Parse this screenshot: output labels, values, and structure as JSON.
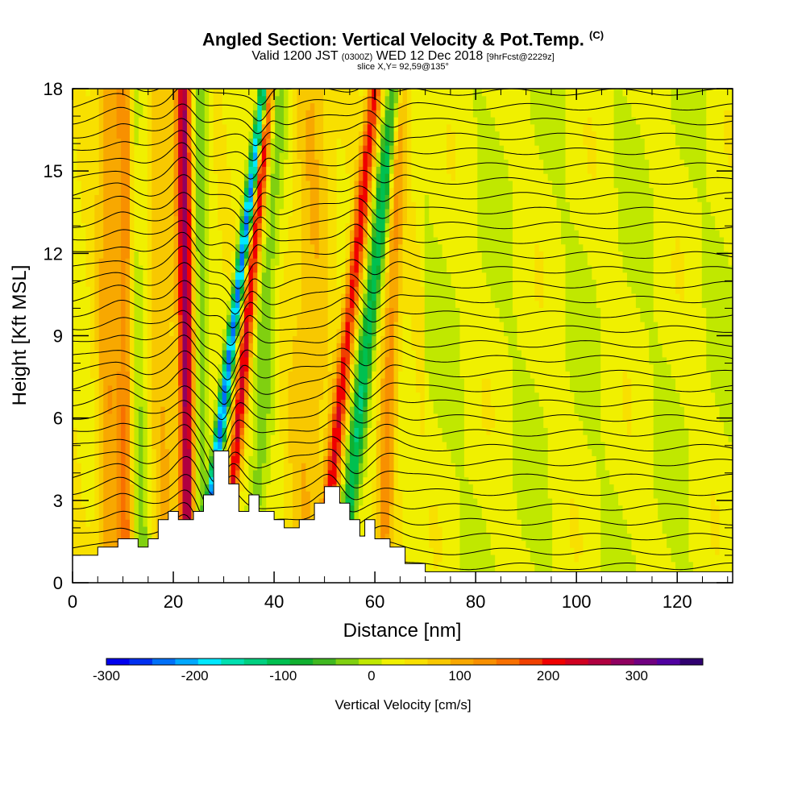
{
  "header": {
    "title": "Angled Section: Vertical Velocity & Pot.Temp.",
    "title_tag": "(C)",
    "valid_a": "Valid 1200 JST",
    "valid_small": "(0300Z)",
    "valid_b": "WED 12 Dec 2018",
    "fcst": "[9hrFcst@2229z]",
    "slice": "slice X,Y= 92,59@135°"
  },
  "chart_data": {
    "type": "heatmap",
    "xlabel": "Distance [nm]",
    "ylabel": "Height [Kft MSL]",
    "xlim": [
      0,
      131
    ],
    "ylim": [
      0,
      18
    ],
    "x_ticks": [
      0,
      20,
      40,
      60,
      80,
      100,
      120
    ],
    "y_ticks": [
      0,
      3,
      6,
      9,
      12,
      15,
      18
    ],
    "terrain_kft": [
      [
        0,
        1.0
      ],
      [
        5,
        1.0
      ],
      [
        5,
        1.3
      ],
      [
        9,
        1.3
      ],
      [
        9,
        1.6
      ],
      [
        13,
        1.6
      ],
      [
        13,
        1.3
      ],
      [
        15,
        1.3
      ],
      [
        15,
        1.6
      ],
      [
        17,
        1.6
      ],
      [
        17,
        2.3
      ],
      [
        19,
        2.3
      ],
      [
        19,
        2.6
      ],
      [
        21,
        2.6
      ],
      [
        21,
        2.3
      ],
      [
        24,
        2.3
      ],
      [
        24,
        2.6
      ],
      [
        26,
        2.6
      ],
      [
        26,
        3.2
      ],
      [
        28,
        3.2
      ],
      [
        28,
        4.8
      ],
      [
        31,
        4.8
      ],
      [
        31,
        3.6
      ],
      [
        33,
        3.6
      ],
      [
        33,
        2.6
      ],
      [
        35,
        2.6
      ],
      [
        35,
        3.2
      ],
      [
        37,
        3.2
      ],
      [
        37,
        2.6
      ],
      [
        40,
        2.6
      ],
      [
        40,
        2.3
      ],
      [
        42,
        2.3
      ],
      [
        42,
        2.0
      ],
      [
        45,
        2.0
      ],
      [
        45,
        2.3
      ],
      [
        48,
        2.3
      ],
      [
        48,
        2.9
      ],
      [
        50,
        2.9
      ],
      [
        50,
        3.5
      ],
      [
        53,
        3.5
      ],
      [
        53,
        2.9
      ],
      [
        55,
        2.9
      ],
      [
        55,
        2.3
      ],
      [
        57,
        2.3
      ],
      [
        57,
        1.7
      ],
      [
        58,
        1.7
      ],
      [
        58,
        2.3
      ],
      [
        60,
        2.3
      ],
      [
        60,
        1.6
      ],
      [
        63,
        1.6
      ],
      [
        63,
        1.3
      ],
      [
        66,
        1.3
      ],
      [
        66,
        0.7
      ],
      [
        70,
        0.7
      ],
      [
        70,
        0.4
      ],
      [
        131,
        0.4
      ]
    ],
    "velocity_features": [
      {
        "x": 7,
        "w": 2.2,
        "tilt": 0.0,
        "cm_s": 70
      },
      {
        "x": 10.5,
        "w": 1.6,
        "tilt": 0.0,
        "cm_s": 110
      },
      {
        "x": 13,
        "w": 2.0,
        "tilt": 0.1,
        "cm_s": -50
      },
      {
        "x": 18,
        "w": 3.0,
        "tilt": 0.1,
        "cm_s": 50
      },
      {
        "x": 22.5,
        "w": 1.4,
        "tilt": 0.05,
        "cm_s": 240
      },
      {
        "x": 25.5,
        "w": 1.5,
        "tilt": 0.0,
        "cm_s": -60
      },
      {
        "x": 31,
        "w": 1.0,
        "tilt": -0.7,
        "cm_s": -260
      },
      {
        "x": 34,
        "w": 1.2,
        "tilt": -0.5,
        "cm_s": 190
      },
      {
        "x": 38,
        "w": 2.0,
        "tilt": -0.3,
        "cm_s": -60
      },
      {
        "x": 47,
        "w": 4.0,
        "tilt": -0.1,
        "cm_s": 50
      },
      {
        "x": 54,
        "w": 1.4,
        "tilt": -0.6,
        "cm_s": 170
      },
      {
        "x": 58,
        "w": 1.6,
        "tilt": -0.6,
        "cm_s": -140
      },
      {
        "x": 63,
        "w": 1.6,
        "tilt": -0.2,
        "cm_s": 90
      }
    ],
    "colorbar": {
      "label": "Vertical Velocity [cm/s]",
      "min": -300,
      "max": 350,
      "step": 25,
      "tick_values": [
        -300,
        -200,
        -100,
        0,
        100,
        200,
        300
      ],
      "tick_labels": [
        "-300",
        "-200",
        "-100",
        "0",
        "100",
        "200",
        "300"
      ],
      "colors": [
        "#0000ee",
        "#0030f0",
        "#0070f8",
        "#00a8ff",
        "#00e8ff",
        "#00e0b0",
        "#00d080",
        "#00c050",
        "#10b030",
        "#40b820",
        "#80d010",
        "#c0e800",
        "#f0f000",
        "#f8e000",
        "#f8c800",
        "#f8a800",
        "#f89000",
        "#f87000",
        "#f04000",
        "#f00000",
        "#d00020",
        "#b00040",
        "#900060",
        "#700080",
        "#5000a0",
        "#300070"
      ]
    }
  }
}
